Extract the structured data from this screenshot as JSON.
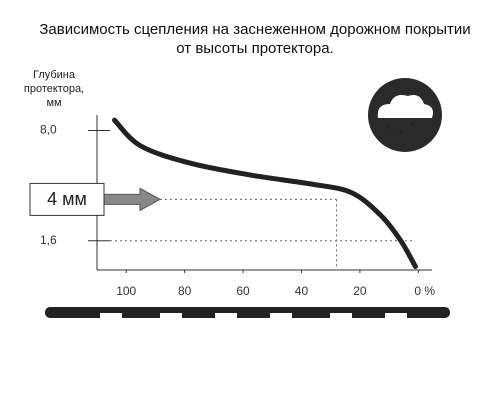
{
  "chart_data": {
    "type": "line",
    "title": [
      "Зависимость сцепления на заснеженном дорожном покрытии",
      "от высоты протектора."
    ],
    "y_label": [
      "Глубина",
      "протектора,",
      "мм"
    ],
    "x": [
      104,
      95,
      78,
      57,
      37,
      23,
      13,
      6,
      1
    ],
    "series": [
      {
        "color": "#222222",
        "values": [
          8.6,
          7.1,
          6.1,
          5.4,
          4.9,
          4.4,
          3.1,
          1.6,
          0.1
        ]
      }
    ],
    "xlim": [
      110,
      -4
    ],
    "xticks": [
      100,
      80,
      60,
      40,
      20,
      {
        "value": 0,
        "label": "0 %"
      }
    ],
    "ylim": [
      -0.1,
      8.9
    ],
    "yticks": [
      {
        "value": 8,
        "label": "8,0"
      },
      {
        "value": 1.6,
        "label": "1,6"
      }
    ],
    "annotation": {
      "label": "4 мм",
      "y": 4,
      "x": 28
    }
  }
}
